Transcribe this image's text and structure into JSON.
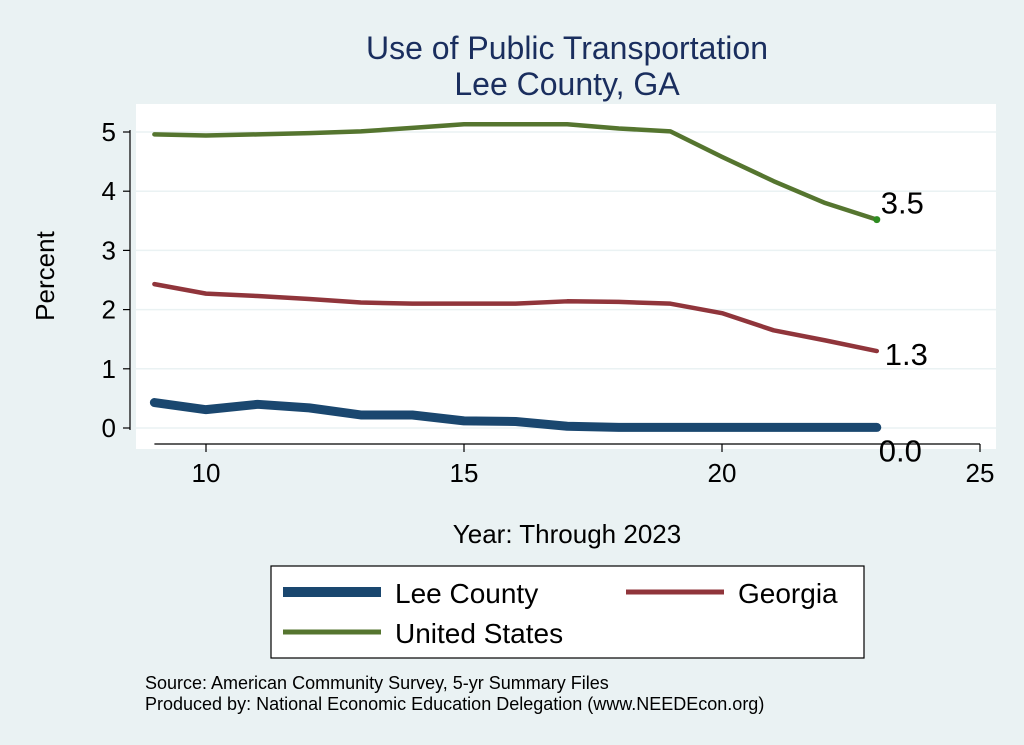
{
  "chart_data": {
    "type": "line",
    "title": "Use of Public Transportation",
    "subtitle": "Lee County, GA",
    "xlabel": "Year: Through 2023",
    "ylabel": "Percent",
    "xlim": [
      9,
      25
    ],
    "ylim": [
      0,
      5
    ],
    "xticks": [
      10,
      15,
      20,
      25
    ],
    "yticks": [
      0,
      1,
      2,
      3,
      4,
      5
    ],
    "grid": true,
    "legend_position": "bottom",
    "series": [
      {
        "name": "Lee County",
        "color": "#1a476f",
        "x": [
          9,
          10,
          11,
          12,
          13,
          14,
          15,
          16,
          17,
          18,
          19,
          20,
          21,
          22,
          23
        ],
        "y": [
          0.43,
          0.31,
          0.4,
          0.34,
          0.22,
          0.22,
          0.12,
          0.11,
          0.03,
          0.01,
          0.01,
          0.01,
          0.01,
          0.01,
          0.01
        ],
        "end_label": "0.0"
      },
      {
        "name": "Georgia",
        "color": "#90353b",
        "x": [
          9,
          10,
          11,
          12,
          13,
          14,
          15,
          16,
          17,
          18,
          19,
          20,
          21,
          22,
          23
        ],
        "y": [
          2.43,
          2.27,
          2.23,
          2.18,
          2.12,
          2.1,
          2.1,
          2.1,
          2.14,
          2.13,
          2.1,
          1.94,
          1.65,
          1.48,
          1.3
        ],
        "end_label": "1.3"
      },
      {
        "name": "United States",
        "color": "#55752f",
        "x": [
          9,
          10,
          11,
          12,
          13,
          14,
          15,
          16,
          17,
          18,
          19,
          20,
          21,
          22,
          23
        ],
        "y": [
          4.96,
          4.94,
          4.96,
          4.98,
          5.01,
          5.07,
          5.13,
          5.13,
          5.13,
          5.06,
          5.01,
          4.58,
          4.17,
          3.8,
          3.52
        ],
        "end_label": "3.5"
      }
    ]
  },
  "notes": {
    "source": "Source: American Community Survey, 5-yr Summary Files",
    "produced_by": "Produced by: National Economic Education Delegation (www.NEEDEcon.org)"
  }
}
